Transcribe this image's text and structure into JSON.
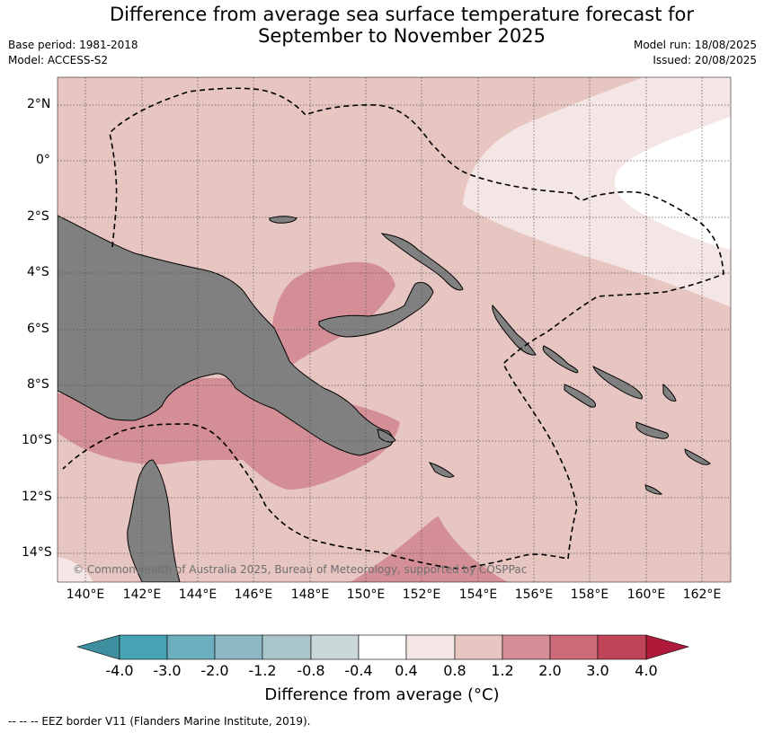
{
  "header": {
    "title_line1": "Difference from average sea surface temperature forecast for",
    "title_line2": "September to November 2025",
    "base_period": "Base period: 1981-2018",
    "model": "Model: ACCESS-S2",
    "model_run": "Model run: 18/08/2025",
    "issued": "Issued: 20/08/2025"
  },
  "map": {
    "lat_labels": [
      "2°N",
      "0°",
      "2°S",
      "4°S",
      "6°S",
      "8°S",
      "10°S",
      "12°S",
      "14°S"
    ],
    "lon_labels": [
      "140°E",
      "142°E",
      "144°E",
      "146°E",
      "148°E",
      "150°E",
      "152°E",
      "154°E",
      "156°E",
      "158°E",
      "160°E",
      "162°E"
    ],
    "copyright": "© Commonwealth of Australia 2025, Bureau of Meteorology, supported by COSPPac",
    "land_color": "#808080"
  },
  "colorbar": {
    "ticks": [
      "-4.0",
      "-3.0",
      "-2.0",
      "-1.2",
      "-0.8",
      "-0.4",
      "0.4",
      "0.8",
      "1.2",
      "2.0",
      "3.0",
      "4.0"
    ],
    "colors": [
      "#3d8f9f",
      "#47a4b4",
      "#6caebd",
      "#8cb7c3",
      "#aac5ca",
      "#cbd8da",
      "#ffffff",
      "#f4e6e4",
      "#e7c5c1",
      "#d48e96",
      "#cc6b77",
      "#c04458",
      "#b01a3a"
    ],
    "title": "Difference from average (°C)"
  },
  "footer": {
    "legend": "--  --  -- EEZ border V11 (Flanders Marine Institute, 2019)."
  }
}
